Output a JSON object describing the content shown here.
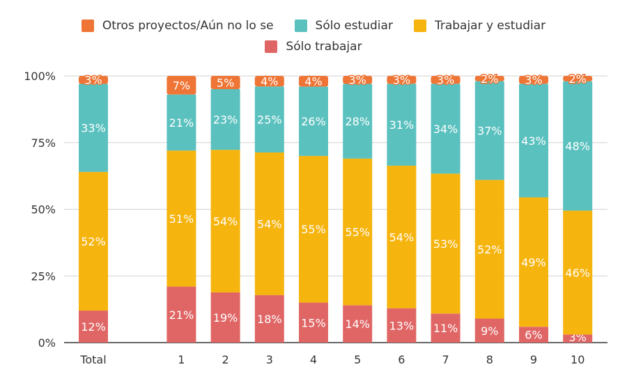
{
  "chart_data": {
    "type": "bar",
    "stacked": true,
    "percent_stacked": true,
    "categories": [
      "Total",
      "",
      "1",
      "2",
      "3",
      "4",
      "5",
      "6",
      "7",
      "8",
      "9",
      "10"
    ],
    "series": [
      {
        "name": "Sólo trabajar",
        "color": "#e06666",
        "values": [
          12,
          null,
          21,
          19,
          18,
          15,
          14,
          13,
          11,
          9,
          6,
          3
        ]
      },
      {
        "name": "Trabajar y estudiar",
        "color": "#f6b40e",
        "values": [
          52,
          null,
          51,
          54,
          54,
          55,
          55,
          54,
          53,
          52,
          49,
          46
        ]
      },
      {
        "name": "Sólo estudiar",
        "color": "#5bc1bf",
        "values": [
          33,
          null,
          21,
          23,
          25,
          26,
          28,
          31,
          34,
          37,
          43,
          48
        ]
      },
      {
        "name": "Otros proyectos/Aún no lo se",
        "color": "#ee7535",
        "values": [
          3,
          null,
          7,
          5,
          4,
          4,
          3,
          3,
          3,
          2,
          3,
          2
        ]
      }
    ],
    "yticks": [
      "0%",
      "25%",
      "50%",
      "75%",
      "100%"
    ],
    "ylim": [
      0,
      100
    ],
    "grid": true,
    "legend_placement": "top",
    "legend_order": [
      "Otros proyectos/Aún no lo se",
      "Sólo estudiar",
      "Trabajar y estudiar",
      "Sólo trabajar"
    ]
  }
}
